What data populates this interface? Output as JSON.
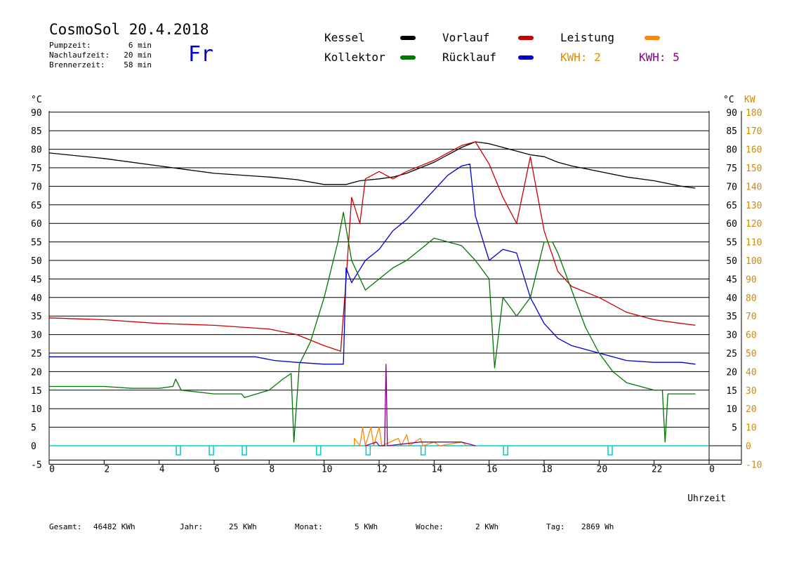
{
  "header": {
    "title": "CosmoSol 20.4.2018",
    "day": "Fr",
    "info": [
      {
        "label": "Pumpzeit:",
        "value": "6 min"
      },
      {
        "label": "Nachlaufzeit:",
        "value": "20 min"
      },
      {
        "label": "Brennerzeit:",
        "value": "58 min"
      }
    ]
  },
  "legend": {
    "kessel": "Kessel",
    "kollektor": "Kollektor",
    "vorlauf": "Vorlauf",
    "ruecklauf": "Rücklauf",
    "leistung": "Leistung",
    "kwh_a": "KWH: 2",
    "kwh_b": "KWH: 5"
  },
  "footer": {
    "gesamt_label": "Gesamt:",
    "gesamt_value": "46482 KWh",
    "jahr_label": "Jahr:",
    "jahr_value": "25 KWh",
    "monat_label": "Monat:",
    "monat_value": "5 KWh",
    "woche_label": "Woche:",
    "woche_value": "2 KWh",
    "tag_label": "Tag:",
    "tag_value": "2869 Wh"
  },
  "colors": {
    "kessel": "#000000",
    "kollektor": "#007700",
    "vorlauf": "#cc0000",
    "ruecklauf": "#0000cc",
    "leistung": "#ff8800",
    "kwh_b": "#880088",
    "pump": "#00cccc"
  },
  "chart_data": {
    "type": "line",
    "xlabel": "Uhrzeit",
    "ylabel_left": "°C",
    "ylabel_right": "KW",
    "xlim": [
      0,
      24
    ],
    "ylim": [
      -5,
      90
    ],
    "x_ticks": [
      "0",
      "2",
      "4",
      "6",
      "8",
      "10",
      "12",
      "14",
      "16",
      "18",
      "20",
      "22",
      "0"
    ],
    "y_ticks_left": [
      "90",
      "85",
      "80",
      "75",
      "70",
      "65",
      "60",
      "55",
      "50",
      "45",
      "40",
      "35",
      "30",
      "25",
      "20",
      "15",
      "10",
      "5",
      "0",
      "-5"
    ],
    "y_ticks_right_temp": [
      "90",
      "85",
      "80",
      "75",
      "70",
      "65",
      "60",
      "55",
      "50",
      "45",
      "40",
      "35",
      "30",
      "25",
      "20",
      "15",
      "10",
      "5"
    ],
    "y_ticks_right_kw": [
      "180",
      "170",
      "160",
      "150",
      "140",
      "130",
      "120",
      "110",
      "100",
      "90",
      "80",
      "70",
      "60",
      "50",
      "40",
      "30",
      "20",
      "10",
      "0",
      "-10"
    ],
    "series": [
      {
        "name": "Kessel",
        "color": "#000000",
        "points": [
          [
            0,
            79
          ],
          [
            2,
            77.5
          ],
          [
            4,
            75.5
          ],
          [
            6,
            73.5
          ],
          [
            8,
            72.5
          ],
          [
            9,
            71.8
          ],
          [
            10,
            70.5
          ],
          [
            10.8,
            70.5
          ],
          [
            11.3,
            71.5
          ],
          [
            12,
            72
          ],
          [
            12.5,
            72.5
          ],
          [
            13,
            73.5
          ],
          [
            14,
            76.5
          ],
          [
            15,
            80.5
          ],
          [
            15.5,
            82
          ],
          [
            16,
            81.5
          ],
          [
            16.5,
            80.5
          ],
          [
            17,
            79.5
          ],
          [
            17.5,
            78.5
          ],
          [
            18,
            78
          ],
          [
            18.5,
            76.5
          ],
          [
            19,
            75.5
          ],
          [
            20,
            74
          ],
          [
            21,
            72.5
          ],
          [
            22,
            71.5
          ],
          [
            23,
            70
          ],
          [
            23.5,
            69.5
          ]
        ]
      },
      {
        "name": "Vorlauf",
        "color": "#cc0000",
        "points": [
          [
            0,
            34.5
          ],
          [
            2,
            34
          ],
          [
            4,
            33
          ],
          [
            6,
            32.5
          ],
          [
            8,
            31.5
          ],
          [
            9,
            30
          ],
          [
            10,
            27
          ],
          [
            10.6,
            25.5
          ],
          [
            10.8,
            45
          ],
          [
            11,
            67
          ],
          [
            11.3,
            60
          ],
          [
            11.5,
            72
          ],
          [
            12,
            74
          ],
          [
            12.5,
            72
          ],
          [
            13,
            74
          ],
          [
            14,
            77
          ],
          [
            15,
            81
          ],
          [
            15.5,
            82
          ],
          [
            16,
            76
          ],
          [
            16.5,
            67
          ],
          [
            17,
            60
          ],
          [
            17.5,
            78
          ],
          [
            18,
            58
          ],
          [
            18.5,
            47
          ],
          [
            19,
            43
          ],
          [
            20,
            40
          ],
          [
            21,
            36
          ],
          [
            22,
            34
          ],
          [
            23,
            33
          ],
          [
            23.5,
            32.5
          ]
        ]
      },
      {
        "name": "Rücklauf",
        "color": "#0000cc",
        "points": [
          [
            0,
            24
          ],
          [
            2,
            24
          ],
          [
            4,
            24
          ],
          [
            6,
            24
          ],
          [
            7.5,
            24
          ],
          [
            8.2,
            23
          ],
          [
            9,
            22.5
          ],
          [
            10,
            22
          ],
          [
            10.7,
            22
          ],
          [
            10.8,
            48
          ],
          [
            11,
            44
          ],
          [
            11.5,
            50
          ],
          [
            12,
            53
          ],
          [
            12.5,
            58
          ],
          [
            13,
            61
          ],
          [
            13.5,
            65
          ],
          [
            14,
            69
          ],
          [
            14.5,
            73
          ],
          [
            15,
            75.5
          ],
          [
            15.3,
            76
          ],
          [
            15.5,
            62
          ],
          [
            16,
            50
          ],
          [
            16.5,
            53
          ],
          [
            17,
            52
          ],
          [
            17.5,
            40
          ],
          [
            18,
            33
          ],
          [
            18.5,
            29
          ],
          [
            19,
            27
          ],
          [
            20,
            25
          ],
          [
            21,
            23
          ],
          [
            22,
            22.5
          ],
          [
            23,
            22.5
          ],
          [
            23.5,
            22
          ]
        ]
      },
      {
        "name": "Kollektor",
        "color": "#007700",
        "points": [
          [
            0,
            16
          ],
          [
            2,
            16
          ],
          [
            3,
            15.5
          ],
          [
            4,
            15.5
          ],
          [
            4.5,
            16
          ],
          [
            4.6,
            18
          ],
          [
            4.8,
            15
          ],
          [
            6,
            14
          ],
          [
            7,
            14
          ],
          [
            7.1,
            13
          ],
          [
            8,
            15
          ],
          [
            8.5,
            18
          ],
          [
            8.8,
            19.5
          ],
          [
            8.9,
            1
          ],
          [
            9.1,
            22
          ],
          [
            9.5,
            28
          ],
          [
            10,
            40
          ],
          [
            10.5,
            55
          ],
          [
            10.7,
            63
          ],
          [
            11,
            50
          ],
          [
            11.5,
            42
          ],
          [
            12,
            45
          ],
          [
            12.5,
            48
          ],
          [
            13,
            50
          ],
          [
            13.5,
            53
          ],
          [
            14,
            56
          ],
          [
            14.5,
            55
          ],
          [
            15,
            54
          ],
          [
            15.5,
            50
          ],
          [
            16,
            45
          ],
          [
            16.2,
            21
          ],
          [
            16.5,
            40
          ],
          [
            17,
            35
          ],
          [
            17.5,
            40
          ],
          [
            18,
            55
          ],
          [
            18.3,
            55
          ],
          [
            18.5,
            52
          ],
          [
            19,
            42
          ],
          [
            19.5,
            32
          ],
          [
            20,
            25
          ],
          [
            20.5,
            20
          ],
          [
            21,
            17
          ],
          [
            22,
            15
          ],
          [
            22.3,
            15
          ],
          [
            22.4,
            1
          ],
          [
            22.5,
            14
          ],
          [
            23,
            14
          ],
          [
            23.5,
            14
          ]
        ]
      },
      {
        "name": "Leistung",
        "color": "#ff8800",
        "points": [
          [
            11.1,
            0
          ],
          [
            11.1,
            2
          ],
          [
            11.3,
            0
          ],
          [
            11.4,
            5
          ],
          [
            11.5,
            0
          ],
          [
            11.7,
            5
          ],
          [
            11.8,
            0
          ],
          [
            12,
            5
          ],
          [
            12.1,
            0
          ],
          [
            12.7,
            2
          ],
          [
            12.8,
            0
          ],
          [
            13,
            3
          ],
          [
            13.1,
            0
          ],
          [
            13.5,
            2
          ],
          [
            13.6,
            0
          ],
          [
            14,
            1
          ],
          [
            14.2,
            0
          ],
          [
            15,
            1
          ],
          [
            15.2,
            0
          ]
        ]
      },
      {
        "name": "KWH: 5",
        "color": "#880088",
        "points": [
          [
            11.5,
            0
          ],
          [
            11.9,
            1
          ],
          [
            12,
            0
          ],
          [
            12.2,
            0
          ],
          [
            12.25,
            22
          ],
          [
            12.3,
            0
          ],
          [
            13.5,
            1
          ],
          [
            14,
            1
          ],
          [
            15,
            1
          ],
          [
            15.5,
            0
          ]
        ]
      }
    ],
    "pump_pulses_hours": [
      4.7,
      5.9,
      7.1,
      9.8,
      11.6,
      13.6,
      16.6,
      20.4
    ]
  }
}
